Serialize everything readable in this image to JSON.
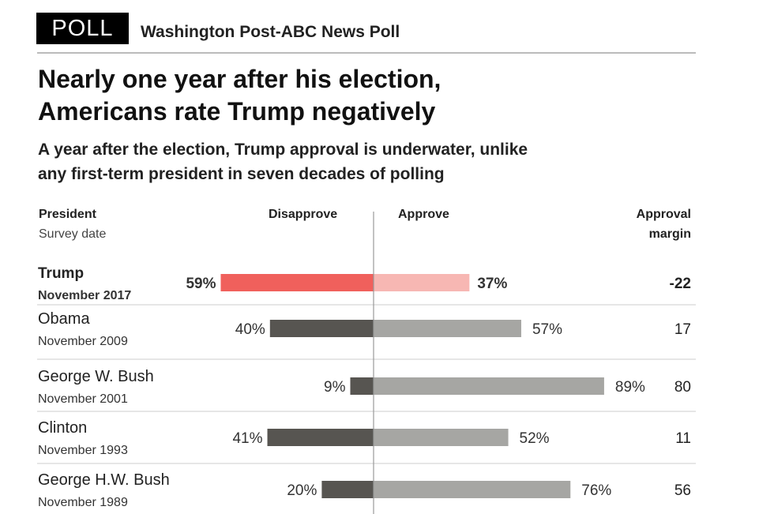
{
  "header": {
    "badge": "POLL",
    "source": "Washington Post-ABC News Poll",
    "title_line1": "Nearly one year after his election,",
    "title_line2": "Americans rate Trump negatively",
    "subtitle_line1": "A year after the election, Trump approval is underwater, unlike",
    "subtitle_line2": "any first-term president in seven decades of polling"
  },
  "columns": {
    "president": "President",
    "survey_date": "Survey date",
    "disapprove": "Disapprove",
    "approve": "Approve",
    "margin_line1": "Approval",
    "margin_line2": "margin"
  },
  "colors": {
    "trump_disapprove": "#f0605c",
    "trump_approve": "#f7b7b3",
    "disapprove": "#575551",
    "approve": "#a6a6a3",
    "axis": "#999999",
    "divider": "#e6e6e6"
  },
  "chart_data": {
    "type": "bar",
    "orientation": "horizontal-diverging",
    "unit": "%",
    "xlim": [
      -100,
      100
    ],
    "grid": false,
    "categories": [
      "Trump",
      "Obama",
      "George W. Bush",
      "Clinton",
      "George H.W. Bush"
    ],
    "survey_dates": [
      "November 2017",
      "November 2009",
      "November 2001",
      "November 1993",
      "November 1989"
    ],
    "series": [
      {
        "name": "Disapprove",
        "values": [
          59,
          40,
          9,
          41,
          20
        ],
        "labels": [
          "59%",
          "40%",
          "9%",
          "41%",
          "20%"
        ]
      },
      {
        "name": "Approve",
        "values": [
          37,
          57,
          89,
          52,
          76
        ],
        "labels": [
          "37%",
          "57%",
          "89%",
          "52%",
          "76%"
        ]
      }
    ],
    "margin": [
      "-22",
      "17",
      "80",
      "11",
      "56"
    ],
    "highlight": "Trump"
  }
}
